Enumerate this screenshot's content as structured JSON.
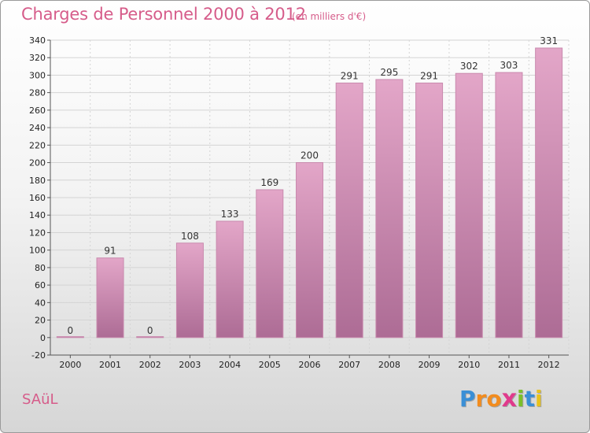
{
  "header": {
    "title": "Charges de Personnel 2000 à 2012",
    "subtitle": "(en milliers d'€)"
  },
  "footer": {
    "commune": "SAüL",
    "logo": {
      "letters": [
        "P",
        "r",
        "o",
        "x",
        "i",
        "t",
        "i"
      ],
      "colors": [
        "#3a8fd6",
        "#f28c1e",
        "#f28c1e",
        "#e03a8c",
        "#7bbf2a",
        "#3a8fd6",
        "#e8c21c"
      ]
    }
  },
  "colors": {
    "bar_top": "#e3a6c8",
    "bar_bottom": "#ad6c95",
    "bar_edge": "#c98aae",
    "grid": "#d4d4d4",
    "text_accent": "#d65c8a"
  },
  "chart_data": {
    "type": "bar",
    "categories": [
      "2000",
      "2001",
      "2002",
      "2003",
      "2004",
      "2005",
      "2006",
      "2007",
      "2008",
      "2009",
      "2010",
      "2011",
      "2012"
    ],
    "values": [
      0,
      91,
      0,
      108,
      133,
      169,
      200,
      291,
      295,
      291,
      302,
      303,
      331
    ],
    "data_labels": [
      "0",
      "91",
      "0",
      "108",
      "133",
      "169",
      "200",
      "291",
      "295",
      "291",
      "302",
      "303",
      "331"
    ],
    "ylim": [
      -20,
      340
    ],
    "yticks": [
      -20,
      0,
      20,
      40,
      60,
      80,
      100,
      120,
      140,
      160,
      180,
      200,
      220,
      240,
      260,
      280,
      300,
      320,
      340
    ],
    "grid": true,
    "legend": "none"
  }
}
